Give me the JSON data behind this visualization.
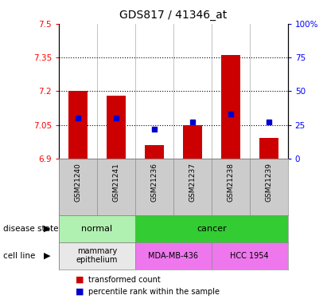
{
  "title": "GDS817 / 41346_at",
  "samples": [
    "GSM21240",
    "GSM21241",
    "GSM21236",
    "GSM21237",
    "GSM21238",
    "GSM21239"
  ],
  "red_values": [
    7.2,
    7.18,
    6.96,
    7.05,
    7.36,
    6.99
  ],
  "blue_percentiles": [
    30,
    30,
    22,
    27,
    33,
    27
  ],
  "y_min": 6.9,
  "y_max": 7.5,
  "y_ticks": [
    6.9,
    7.05,
    7.2,
    7.35,
    7.5
  ],
  "y_tick_labels": [
    "6.9",
    "7.05",
    "7.2",
    "7.35",
    "7.5"
  ],
  "right_y_ticks": [
    0,
    25,
    50,
    75,
    100
  ],
  "right_y_tick_labels": [
    "0",
    "25",
    "50",
    "75",
    "100%"
  ],
  "bar_color": "#cc0000",
  "square_color": "#0000cc",
  "bar_width": 0.5,
  "disease_state": [
    {
      "label": "normal",
      "samples": [
        0,
        1
      ],
      "color": "#b0f0b0"
    },
    {
      "label": "cancer",
      "samples": [
        2,
        3,
        4,
        5
      ],
      "color": "#33cc33"
    }
  ],
  "cell_line": [
    {
      "label": "mammary\nepithelium",
      "samples": [
        0,
        1
      ],
      "color": "#e8e8e8"
    },
    {
      "label": "MDA-MB-436",
      "samples": [
        2,
        3
      ],
      "color": "#ee77ee"
    },
    {
      "label": "HCC 1954",
      "samples": [
        4,
        5
      ],
      "color": "#ee77ee"
    }
  ],
  "legend_red_label": "transformed count",
  "legend_blue_label": "percentile rank within the sample",
  "background_color": "#ffffff",
  "plot_bg_color": "#ffffff",
  "tick_area_color": "#cccccc",
  "dotted_lines": [
    7.05,
    7.2,
    7.35
  ]
}
